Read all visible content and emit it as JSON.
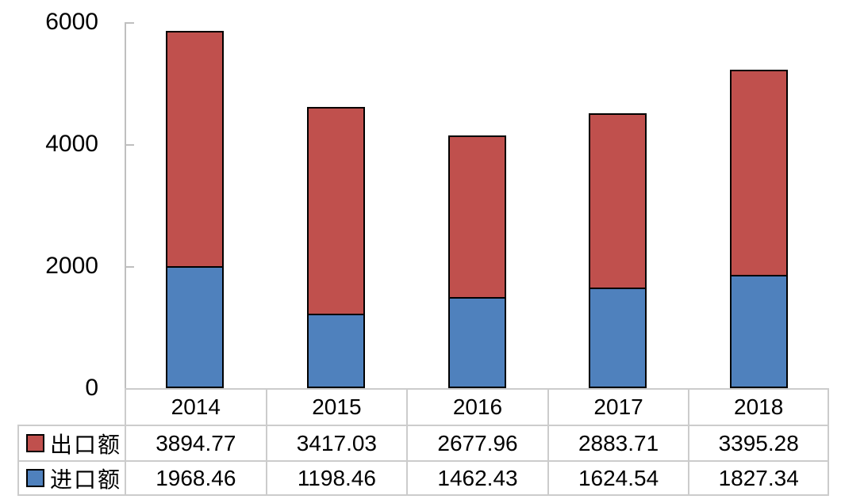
{
  "chart_data": {
    "type": "bar",
    "stacked": true,
    "categories": [
      "2014",
      "2015",
      "2016",
      "2017",
      "2018"
    ],
    "series": [
      {
        "name": "出口额",
        "color": "#C0504D",
        "values": [
          3894.77,
          3417.03,
          2677.96,
          2883.71,
          3395.28
        ]
      },
      {
        "name": "进口额",
        "color": "#4F81BD",
        "values": [
          1968.46,
          1198.46,
          1462.43,
          1624.54,
          1827.34
        ]
      }
    ],
    "title": "",
    "xlabel": "",
    "ylabel": "",
    "ylim": [
      0,
      6000
    ],
    "yticks": [
      0,
      2000,
      4000,
      6000
    ],
    "grid": false,
    "legend_position": "table-rows-left",
    "bar_border_color": "#000000",
    "axis_line_color": "#BFBFBF",
    "table_border_color": "#CCCCCC"
  },
  "yaxis": {
    "tick_labels": [
      "6000",
      "4000",
      "2000",
      "0"
    ]
  }
}
